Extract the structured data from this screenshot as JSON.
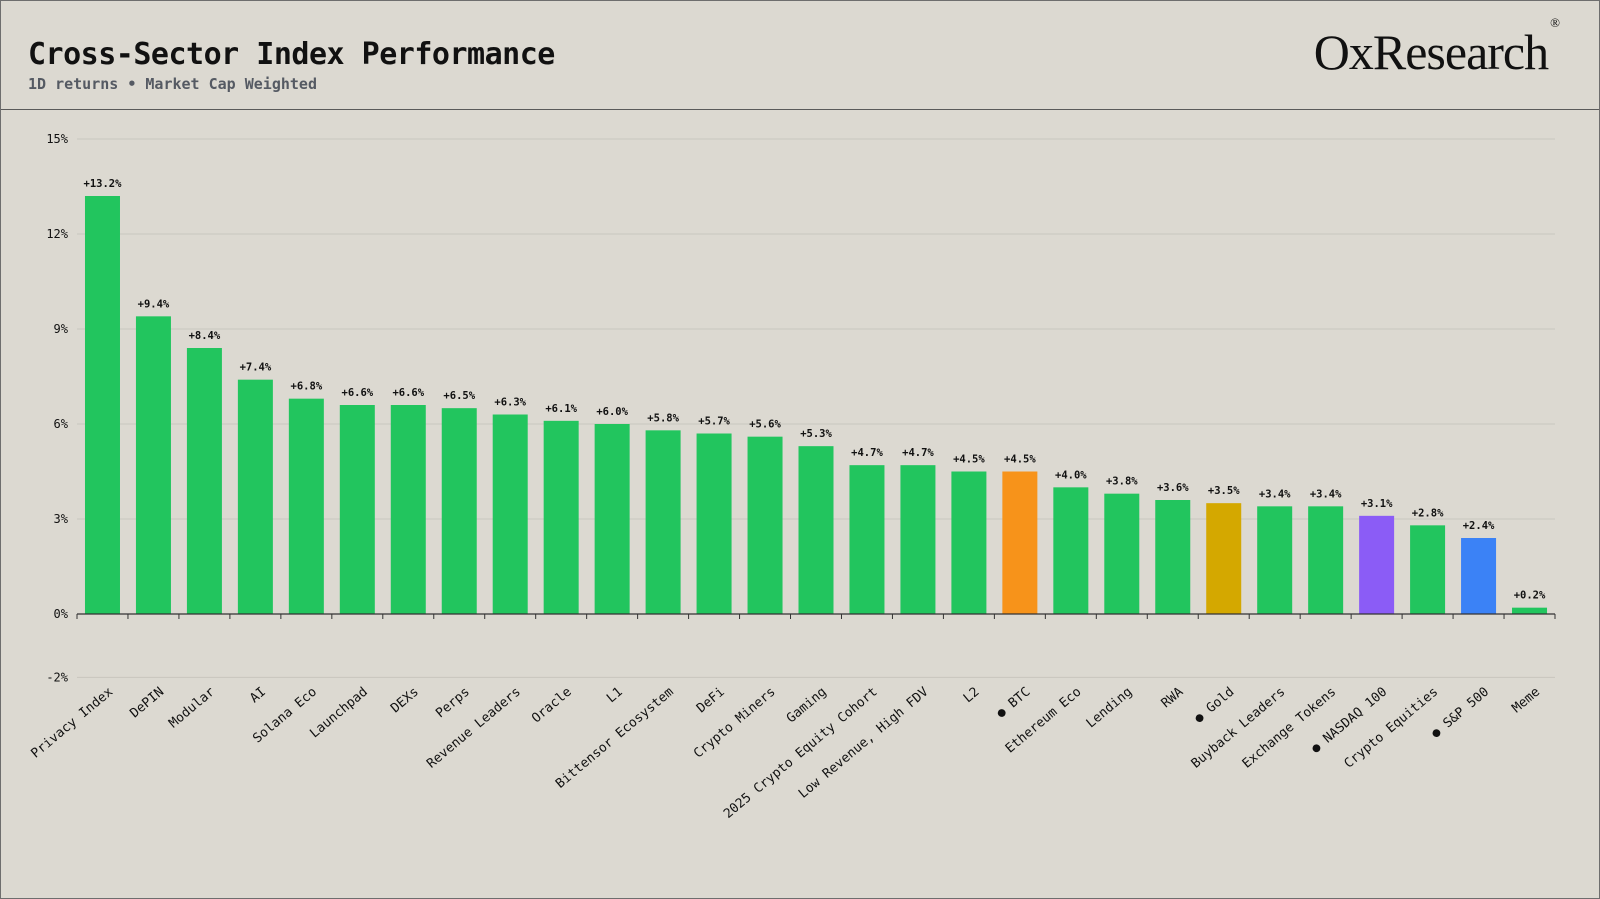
{
  "header": {
    "title": "Cross-Sector Index Performance",
    "subtitle": "1D returns • Market Cap Weighted",
    "logo": "OxResearch",
    "logo_mark": "®"
  },
  "colors": {
    "green": "#22c55e",
    "orange": "#f7931a",
    "gold": "#d4a800",
    "purple": "#8b5cf6",
    "blue": "#3b82f6",
    "background": "#dcd9d1",
    "grid": "#c9c6be"
  },
  "chart_data": {
    "type": "bar",
    "title": "Cross-Sector Index Performance",
    "subtitle": "1D returns • Market Cap Weighted",
    "xlabel": "",
    "ylabel": "",
    "ylim": [
      -2,
      15
    ],
    "yticks": [
      15,
      12,
      9,
      6,
      3,
      0,
      -2
    ],
    "ytick_labels": [
      "15%",
      "12%",
      "9%",
      "6%",
      "3%",
      "0%",
      "-2%"
    ],
    "grid": true,
    "categories": [
      "Privacy Index",
      "DePIN",
      "Modular",
      "AI",
      "Solana Eco",
      "Launchpad",
      "DEXs",
      "Perps",
      "Revenue Leaders",
      "Oracle",
      "L1",
      "Bittensor Ecosystem",
      "DeFi",
      "Crypto Miners",
      "Gaming",
      "2025 Crypto Equity Cohort",
      "Low Revenue, High FDV",
      "L2",
      "BTC",
      "Ethereum Eco",
      "Lending",
      "RWA",
      "Gold",
      "Buyback Leaders",
      "Exchange Tokens",
      "NASDAQ 100",
      "Crypto Equities",
      "S&P 500",
      "Meme"
    ],
    "values": [
      13.2,
      9.4,
      8.4,
      7.4,
      6.8,
      6.6,
      6.6,
      6.5,
      6.3,
      6.1,
      6.0,
      5.8,
      5.7,
      5.6,
      5.3,
      4.7,
      4.7,
      4.5,
      4.5,
      4.0,
      3.8,
      3.6,
      3.5,
      3.4,
      3.4,
      3.1,
      2.8,
      2.4,
      0.2
    ],
    "labels": [
      "+13.2%",
      "+9.4%",
      "+8.4%",
      "+7.4%",
      "+6.8%",
      "+6.6%",
      "+6.6%",
      "+6.5%",
      "+6.3%",
      "+6.1%",
      "+6.0%",
      "+5.8%",
      "+5.7%",
      "+5.6%",
      "+5.3%",
      "+4.7%",
      "+4.7%",
      "+4.5%",
      "+4.5%",
      "+4.0%",
      "+3.8%",
      "+3.6%",
      "+3.5%",
      "+3.4%",
      "+3.4%",
      "+3.1%",
      "+2.8%",
      "+2.4%",
      "+0.2%"
    ],
    "bar_colors": [
      "green",
      "green",
      "green",
      "green",
      "green",
      "green",
      "green",
      "green",
      "green",
      "green",
      "green",
      "green",
      "green",
      "green",
      "green",
      "green",
      "green",
      "green",
      "orange",
      "green",
      "green",
      "green",
      "gold",
      "green",
      "green",
      "purple",
      "green",
      "blue",
      "green"
    ],
    "benchmark_marker": "●",
    "benchmarks": [
      "BTC",
      "Gold",
      "NASDAQ 100",
      "S&P 500"
    ]
  }
}
